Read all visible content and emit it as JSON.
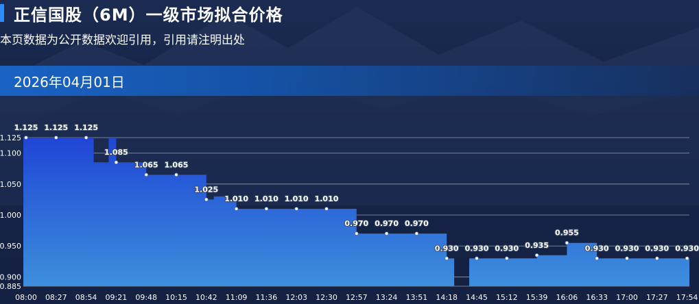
{
  "header": {
    "title": "正信国股（6M）一级市场拟合价格",
    "subtitle": "本页数据为公开数据欢迎引用，引用请注明出处",
    "date": "2026年04月01日"
  },
  "colors": {
    "accent": "#2d8cff",
    "area_top": "#1f45d6",
    "area_bottom": "#3d8fdc"
  },
  "chart_data": {
    "type": "area",
    "step": true,
    "x": [
      "08:00",
      "08:27",
      "08:54",
      "09:21",
      "09:48",
      "10:15",
      "10:42",
      "11:09",
      "11:36",
      "12:03",
      "12:30",
      "12:57",
      "13:24",
      "13:51",
      "14:18",
      "14:45",
      "15:12",
      "15:39",
      "16:06",
      "16:33",
      "17:00",
      "17:27",
      "17:54"
    ],
    "y": [
      1.125,
      1.125,
      1.125,
      1.085,
      1.065,
      1.065,
      1.025,
      1.01,
      1.01,
      1.01,
      1.01,
      0.97,
      0.97,
      0.97,
      0.93,
      0.93,
      0.93,
      0.935,
      0.955,
      0.93,
      0.93,
      0.93,
      0.93
    ],
    "data_labels": [
      "1.125",
      "1.125",
      "1.125",
      "1.085",
      "1.065",
      "1.065",
      "1.025",
      "1.010",
      "1.010",
      "1.010",
      "1.010",
      "0.970",
      "0.970",
      "0.970",
      "0.930",
      "0.930",
      "0.930",
      "0.935",
      "0.955",
      "0.930",
      "0.930",
      "0.930",
      "0.930"
    ],
    "series_extra": [
      {
        "x_between": [
          "08:54",
          "09:21"
        ],
        "y": 1.085
      },
      {
        "x_between": [
          "10:42",
          "11:09"
        ],
        "y": 1.03
      },
      {
        "x_between": [
          "14:18",
          "14:45"
        ],
        "y": 0.885
      }
    ],
    "y_ticks": [
      "0.885",
      "0.900",
      "0.950",
      "1.000",
      "1.050",
      "1.100",
      "1.125"
    ],
    "ylim": [
      0.885,
      1.125
    ],
    "grid": true
  }
}
